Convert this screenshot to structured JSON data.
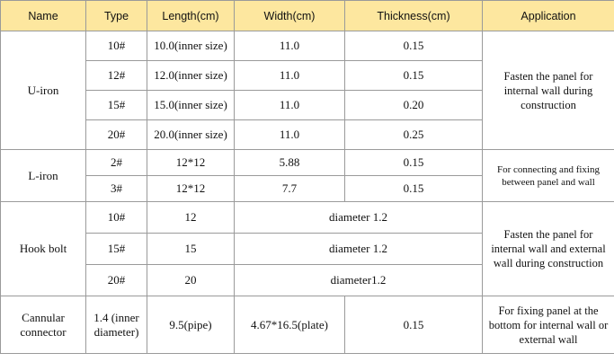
{
  "table": {
    "header": [
      "Name",
      "Type",
      "Length(cm)",
      "Width(cm)",
      "Thickness(cm)",
      "Application"
    ],
    "groups": [
      {
        "name": "U-iron",
        "application": "Fasten the panel for internal wall during construction",
        "rows": [
          [
            "10#",
            "10.0(inner size)",
            "11.0",
            "0.15"
          ],
          [
            "12#",
            "12.0(inner size)",
            "11.0",
            "0.15"
          ],
          [
            "15#",
            "15.0(inner size)",
            "11.0",
            "0.20"
          ],
          [
            "20#",
            "20.0(inner size)",
            "11.0",
            "0.25"
          ]
        ]
      },
      {
        "name": "L-iron",
        "application": "For connecting and fixing between panel and wall",
        "rows": [
          [
            "2#",
            "12*12",
            "5.88",
            "0.15"
          ],
          [
            "3#",
            "12*12",
            "7.7",
            "0.15"
          ]
        ]
      },
      {
        "name": "Hook bolt",
        "application": "Fasten the panel for internal wall and external wall during construction",
        "rows": [
          [
            "10#",
            "12",
            "diameter 1.2"
          ],
          [
            "15#",
            "15",
            "diameter 1.2"
          ],
          [
            "20#",
            "20",
            "diameter1.2"
          ]
        ]
      },
      {
        "name": "Cannular connector",
        "application": "For fixing panel at the bottom for internal wall or external wall",
        "rows": [
          [
            "1.4 (inner diameter)",
            "9.5(pipe)",
            "4.67*16.5(plate)",
            "0.15"
          ]
        ]
      }
    ]
  }
}
